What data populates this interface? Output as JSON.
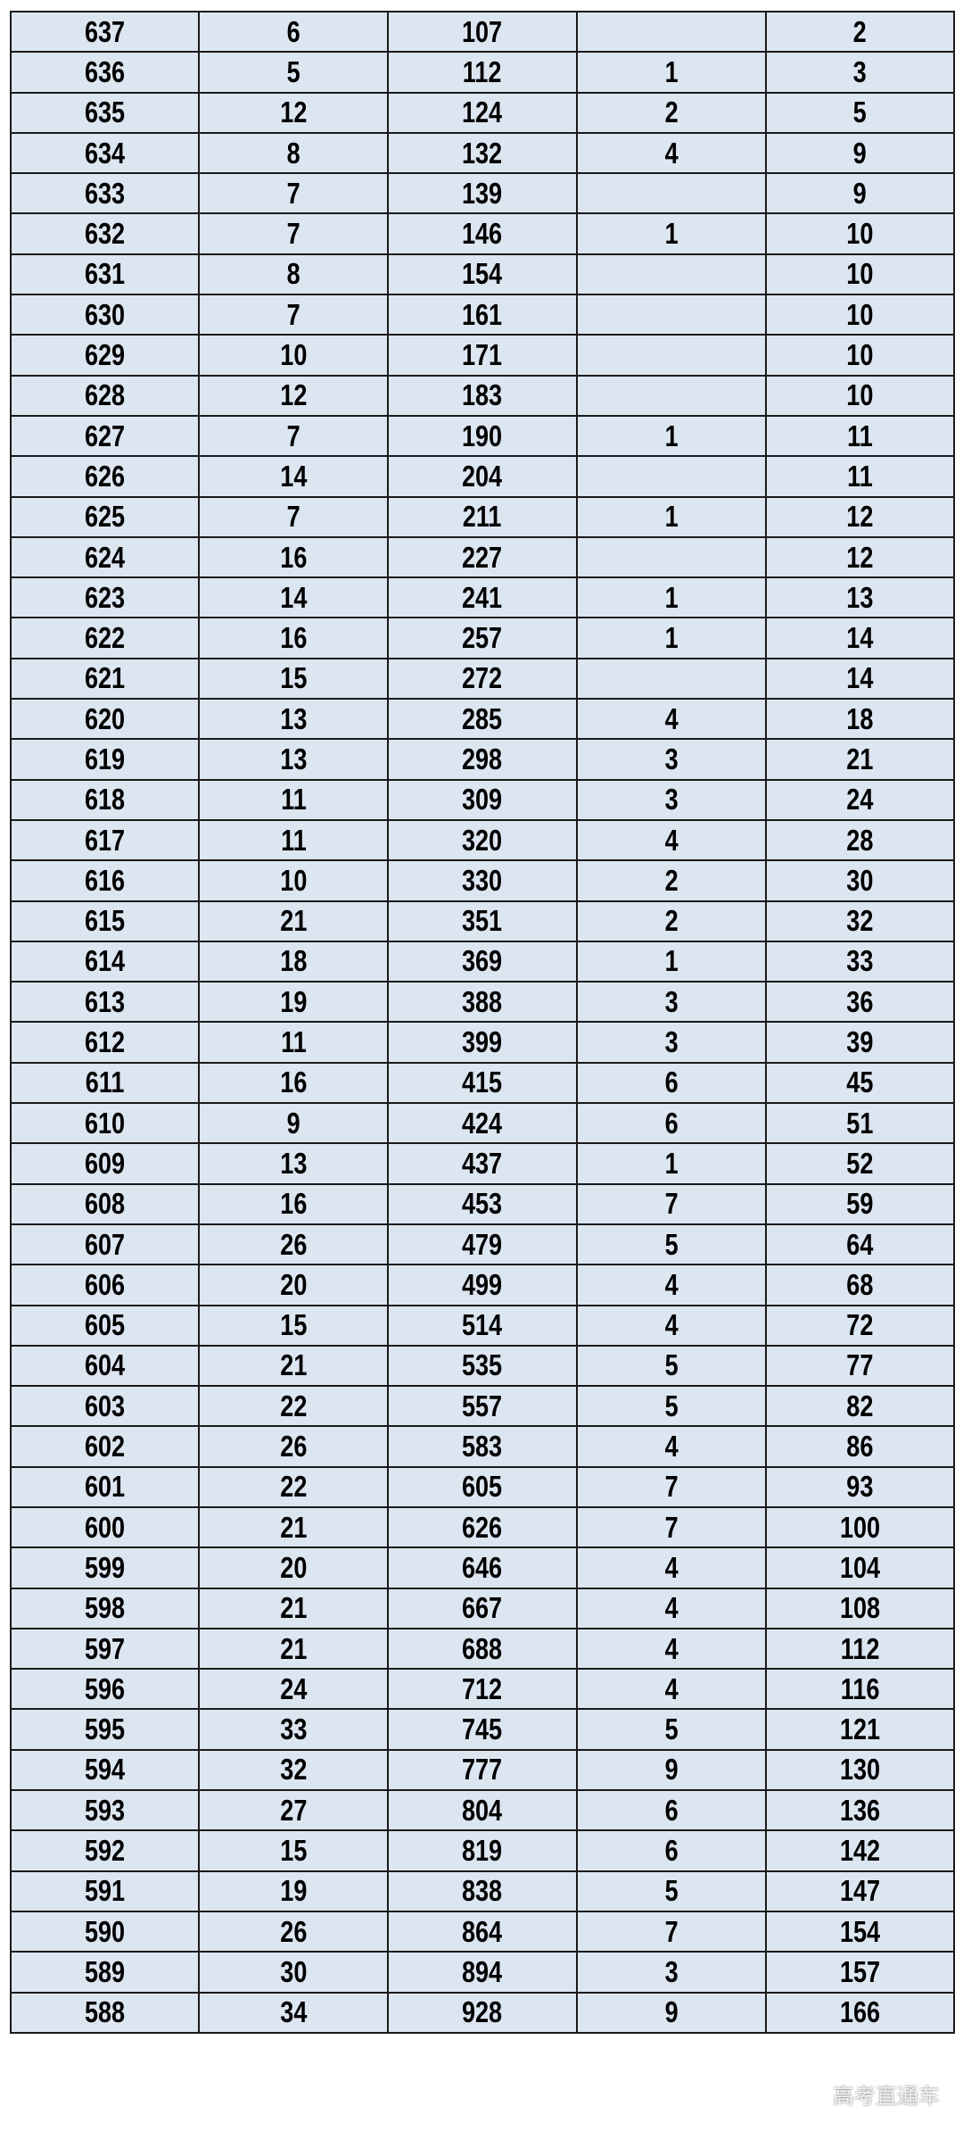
{
  "table": {
    "rows": [
      [
        "637",
        "6",
        "107",
        "",
        "2"
      ],
      [
        "636",
        "5",
        "112",
        "1",
        "3"
      ],
      [
        "635",
        "12",
        "124",
        "2",
        "5"
      ],
      [
        "634",
        "8",
        "132",
        "4",
        "9"
      ],
      [
        "633",
        "7",
        "139",
        "",
        "9"
      ],
      [
        "632",
        "7",
        "146",
        "1",
        "10"
      ],
      [
        "631",
        "8",
        "154",
        "",
        "10"
      ],
      [
        "630",
        "7",
        "161",
        "",
        "10"
      ],
      [
        "629",
        "10",
        "171",
        "",
        "10"
      ],
      [
        "628",
        "12",
        "183",
        "",
        "10"
      ],
      [
        "627",
        "7",
        "190",
        "1",
        "11"
      ],
      [
        "626",
        "14",
        "204",
        "",
        "11"
      ],
      [
        "625",
        "7",
        "211",
        "1",
        "12"
      ],
      [
        "624",
        "16",
        "227",
        "",
        "12"
      ],
      [
        "623",
        "14",
        "241",
        "1",
        "13"
      ],
      [
        "622",
        "16",
        "257",
        "1",
        "14"
      ],
      [
        "621",
        "15",
        "272",
        "",
        "14"
      ],
      [
        "620",
        "13",
        "285",
        "4",
        "18"
      ],
      [
        "619",
        "13",
        "298",
        "3",
        "21"
      ],
      [
        "618",
        "11",
        "309",
        "3",
        "24"
      ],
      [
        "617",
        "11",
        "320",
        "4",
        "28"
      ],
      [
        "616",
        "10",
        "330",
        "2",
        "30"
      ],
      [
        "615",
        "21",
        "351",
        "2",
        "32"
      ],
      [
        "614",
        "18",
        "369",
        "1",
        "33"
      ],
      [
        "613",
        "19",
        "388",
        "3",
        "36"
      ],
      [
        "612",
        "11",
        "399",
        "3",
        "39"
      ],
      [
        "611",
        "16",
        "415",
        "6",
        "45"
      ],
      [
        "610",
        "9",
        "424",
        "6",
        "51"
      ],
      [
        "609",
        "13",
        "437",
        "1",
        "52"
      ],
      [
        "608",
        "16",
        "453",
        "7",
        "59"
      ],
      [
        "607",
        "26",
        "479",
        "5",
        "64"
      ],
      [
        "606",
        "20",
        "499",
        "4",
        "68"
      ],
      [
        "605",
        "15",
        "514",
        "4",
        "72"
      ],
      [
        "604",
        "21",
        "535",
        "5",
        "77"
      ],
      [
        "603",
        "22",
        "557",
        "5",
        "82"
      ],
      [
        "602",
        "26",
        "583",
        "4",
        "86"
      ],
      [
        "601",
        "22",
        "605",
        "7",
        "93"
      ],
      [
        "600",
        "21",
        "626",
        "7",
        "100"
      ],
      [
        "599",
        "20",
        "646",
        "4",
        "104"
      ],
      [
        "598",
        "21",
        "667",
        "4",
        "108"
      ],
      [
        "597",
        "21",
        "688",
        "4",
        "112"
      ],
      [
        "596",
        "24",
        "712",
        "4",
        "116"
      ],
      [
        "595",
        "33",
        "745",
        "5",
        "121"
      ],
      [
        "594",
        "32",
        "777",
        "9",
        "130"
      ],
      [
        "593",
        "27",
        "804",
        "6",
        "136"
      ],
      [
        "592",
        "15",
        "819",
        "6",
        "142"
      ],
      [
        "591",
        "19",
        "838",
        "5",
        "147"
      ],
      [
        "590",
        "26",
        "864",
        "7",
        "154"
      ],
      [
        "589",
        "30",
        "894",
        "3",
        "157"
      ],
      [
        "588",
        "34",
        "928",
        "9",
        "166"
      ]
    ]
  },
  "watermark": "高考直通车",
  "colors": {
    "cell_bg": "#dce6f1",
    "border": "#1a1a1a"
  }
}
